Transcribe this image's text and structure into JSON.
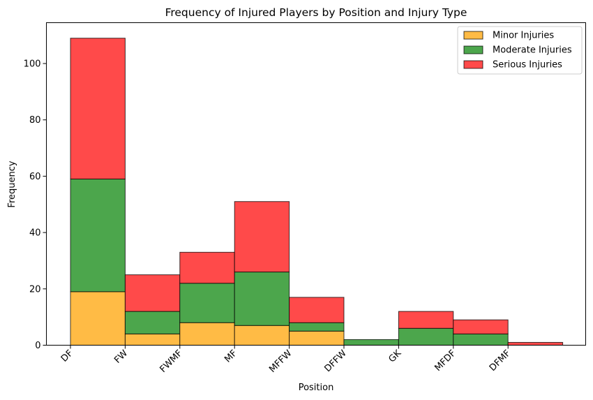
{
  "chart_data": {
    "type": "bar",
    "stacked": true,
    "title": "Frequency of Injured Players by Position and Injury Type",
    "xlabel": "Position",
    "ylabel": "Frequency",
    "categories": [
      "DF",
      "FW",
      "FWMF",
      "MF",
      "MFFW",
      "DFFW",
      "GK",
      "MFDF",
      "DFMF"
    ],
    "ylim": [
      0,
      114.5
    ],
    "yticks": [
      0,
      20,
      40,
      60,
      80,
      100
    ],
    "grid": false,
    "legend_position": "top-right",
    "series": [
      {
        "name": "Minor Injuries",
        "color": "#ffbb45",
        "values": [
          19,
          4,
          8,
          7,
          5,
          0,
          0,
          0,
          0
        ]
      },
      {
        "name": "Moderate Injuries",
        "color": "#4ca64c",
        "values": [
          40,
          8,
          14,
          19,
          3,
          2,
          6,
          4,
          0
        ]
      },
      {
        "name": "Serious Injuries",
        "color": "#ff4a4a",
        "values": [
          50,
          13,
          11,
          25,
          9,
          0,
          6,
          5,
          1
        ]
      }
    ]
  }
}
